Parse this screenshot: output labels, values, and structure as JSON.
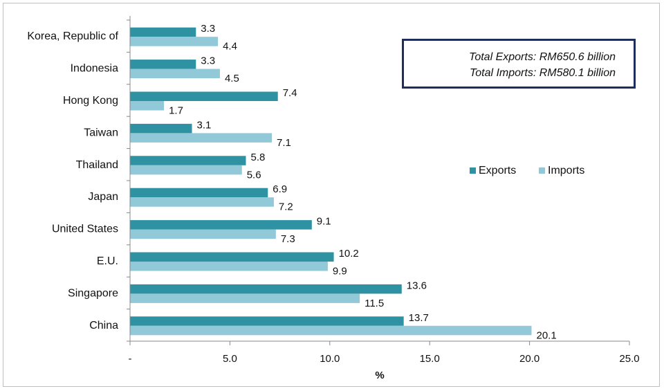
{
  "colors": {
    "exports": "#2e92a2",
    "imports": "#92c9d9",
    "box_border": "#1f2d5c"
  },
  "notes": {
    "line1": "Total Exports: RM650.6 billion",
    "line2": "Total Imports: RM580.1 billion"
  },
  "chart_data": {
    "type": "bar",
    "orientation": "horizontal",
    "categories": [
      "Korea, Republic of",
      "Indonesia",
      "Hong Kong",
      "Taiwan",
      "Thailand",
      "Japan",
      "United States",
      "E.U.",
      "Singapore",
      "China"
    ],
    "series": [
      {
        "name": "Exports",
        "values": [
          3.3,
          3.3,
          7.4,
          3.1,
          5.8,
          6.9,
          9.1,
          10.2,
          13.6,
          13.7
        ]
      },
      {
        "name": "Imports",
        "values": [
          4.4,
          4.5,
          1.7,
          7.1,
          5.6,
          7.2,
          7.3,
          9.9,
          11.5,
          20.1
        ]
      }
    ],
    "xlabel": "%",
    "xlim": [
      0,
      25
    ],
    "x_ticks": [
      0,
      5,
      10,
      15,
      20,
      25
    ],
    "x_tick_labels": [
      "-",
      "5.0",
      "10.0",
      "15.0",
      "20.0",
      "25.0"
    ],
    "legend_position": "right",
    "grid": false
  }
}
